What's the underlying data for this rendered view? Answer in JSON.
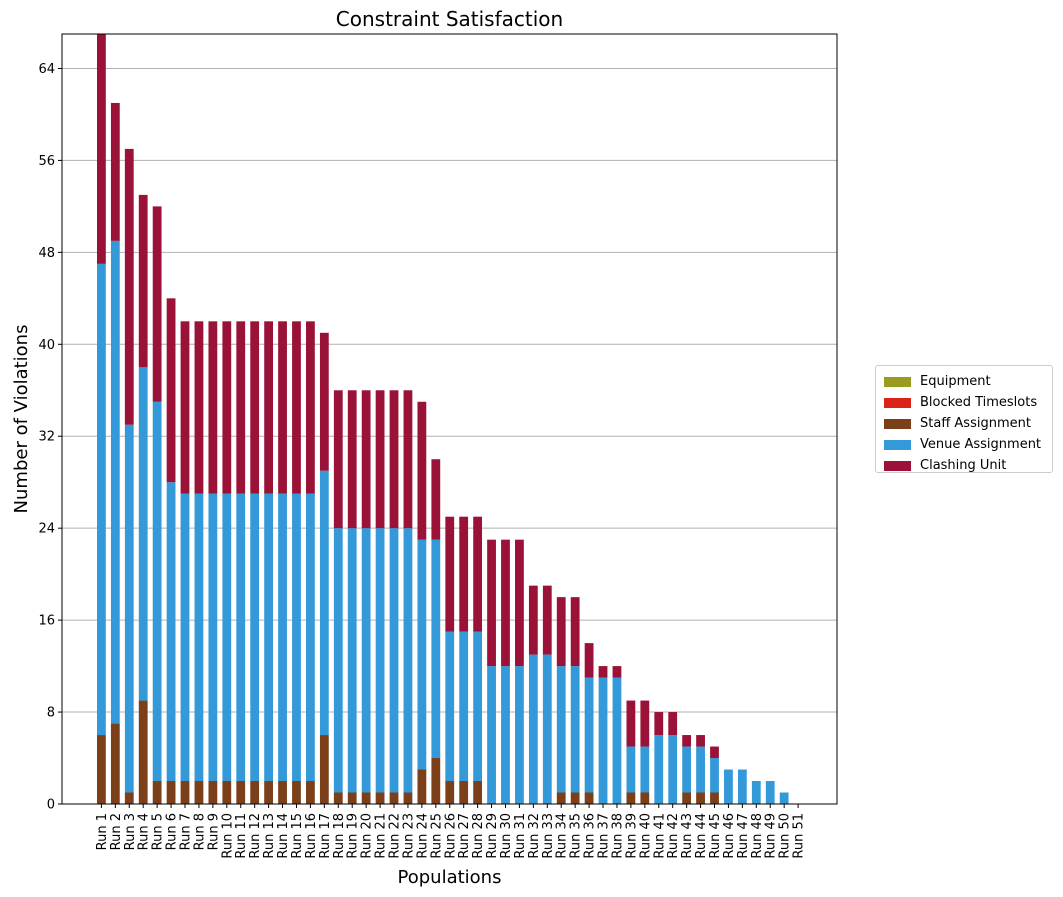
{
  "chart_data": {
    "type": "bar",
    "stacked": true,
    "title": "Constraint Satisfaction",
    "xlabel": "Populations",
    "ylabel": "Number of Violations",
    "ylim": [
      0,
      67
    ],
    "yticks": [
      0,
      8,
      16,
      24,
      32,
      40,
      48,
      56,
      64
    ],
    "grid": "y",
    "legend_position": "right",
    "categories": [
      "Run 1",
      "Run 2",
      "Run 3",
      "Run 4",
      "Run 5",
      "Run 6",
      "Run 7",
      "Run 8",
      "Run 9",
      "Run 10",
      "Run 11",
      "Run 12",
      "Run 13",
      "Run 14",
      "Run 15",
      "Run 16",
      "Run 17",
      "Run 18",
      "Run 19",
      "Run 20",
      "Run 21",
      "Run 22",
      "Run 23",
      "Run 24",
      "Run 25",
      "Run 26",
      "Run 27",
      "Run 28",
      "Run 29",
      "Run 30",
      "Run 31",
      "Run 32",
      "Run 33",
      "Run 34",
      "Run 35",
      "Run 36",
      "Run 37",
      "Run 38",
      "Run 39",
      "Run 40",
      "Run 41",
      "Run 42",
      "Run 43",
      "Run 44",
      "Run 45",
      "Run 46",
      "Run 47",
      "Run 48",
      "Run 49",
      "Run 50",
      "Run 51"
    ],
    "series": [
      {
        "name": "Equipment",
        "color": "#999c1f",
        "values": [
          0,
          0,
          0,
          0,
          0,
          0,
          0,
          0,
          0,
          0,
          0,
          0,
          0,
          0,
          0,
          0,
          0,
          0,
          0,
          0,
          0,
          0,
          0,
          0,
          0,
          0,
          0,
          0,
          0,
          0,
          0,
          0,
          0,
          0,
          0,
          0,
          0,
          0,
          0,
          0,
          0,
          0,
          0,
          0,
          0,
          0,
          0,
          0,
          0,
          0,
          0
        ]
      },
      {
        "name": "Blocked Timeslots",
        "color": "#dc2317",
        "values": [
          0,
          0,
          0,
          0,
          0,
          0,
          0,
          0,
          0,
          0,
          0,
          0,
          0,
          0,
          0,
          0,
          0,
          0,
          0,
          0,
          0,
          0,
          0,
          0,
          0,
          0,
          0,
          0,
          0,
          0,
          0,
          0,
          0,
          0,
          0,
          0,
          0,
          0,
          0,
          0,
          0,
          0,
          0,
          0,
          0,
          0,
          0,
          0,
          0,
          0,
          0
        ]
      },
      {
        "name": "Staff Assignment",
        "color": "#7b3f1a",
        "values": [
          6,
          7,
          1,
          9,
          2,
          2,
          2,
          2,
          2,
          2,
          2,
          2,
          2,
          2,
          2,
          2,
          6,
          1,
          1,
          1,
          1,
          1,
          1,
          3,
          4,
          2,
          2,
          2,
          0,
          0,
          0,
          0,
          0,
          1,
          1,
          1,
          0,
          0,
          1,
          1,
          0,
          0,
          1,
          1,
          1,
          0,
          0,
          0,
          0,
          0,
          0
        ]
      },
      {
        "name": "Venue Assignment",
        "color": "#3499d9",
        "values": [
          41,
          42,
          32,
          29,
          33,
          26,
          25,
          25,
          25,
          25,
          25,
          25,
          25,
          25,
          25,
          25,
          23,
          23,
          23,
          23,
          23,
          23,
          23,
          20,
          19,
          13,
          13,
          13,
          12,
          12,
          12,
          13,
          13,
          11,
          11,
          10,
          11,
          11,
          4,
          4,
          6,
          6,
          4,
          4,
          3,
          3,
          3,
          2,
          2,
          1,
          0
        ]
      },
      {
        "name": "Clashing Unit",
        "color": "#9a1238",
        "values": [
          20,
          12,
          24,
          15,
          17,
          16,
          15,
          15,
          15,
          15,
          15,
          15,
          15,
          15,
          15,
          15,
          12,
          12,
          12,
          12,
          12,
          12,
          12,
          12,
          7,
          10,
          10,
          10,
          11,
          11,
          11,
          6,
          6,
          6,
          6,
          3,
          1,
          1,
          4,
          4,
          2,
          2,
          1,
          1,
          1,
          0,
          0,
          0,
          0,
          0,
          0
        ]
      }
    ]
  }
}
